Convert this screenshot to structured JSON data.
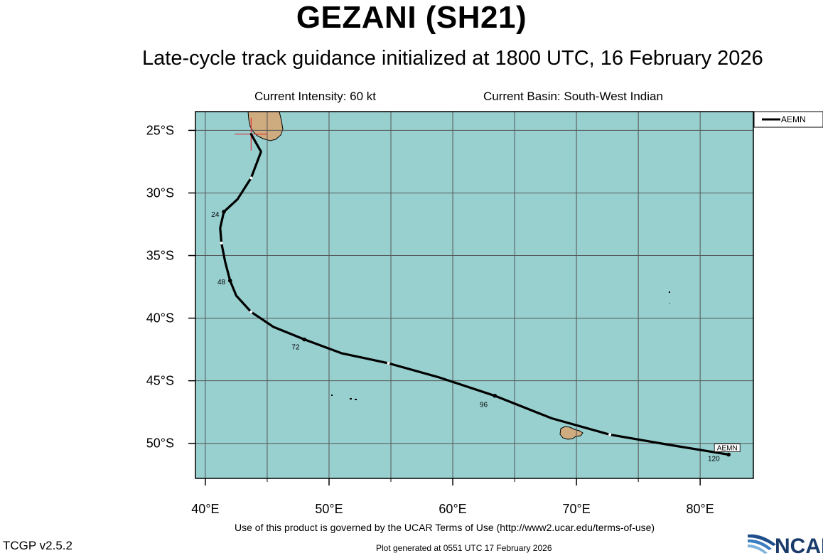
{
  "header": {
    "storm_title": "GEZANI (SH21)",
    "subtitle": "Late-cycle track guidance initialized at 1800 UTC, 16 February 2026",
    "current_intensity": "Current Intensity: 60 kt",
    "current_basin": "Current Basin: South-West Indian"
  },
  "map": {
    "lon_range": [
      39.2,
      84.3
    ],
    "lat_range": [
      -23.5,
      -52.8
    ],
    "ocean_color": "#98cfcf",
    "land_color": "#cfac7f",
    "grid_color": "#555555",
    "x_ticks": [
      {
        "value": 40,
        "label": "40°E"
      },
      {
        "value": 50,
        "label": "50°E"
      },
      {
        "value": 60,
        "label": "60°E"
      },
      {
        "value": 70,
        "label": "70°E"
      },
      {
        "value": 80,
        "label": "80°E"
      }
    ],
    "y_ticks": [
      {
        "value": -25,
        "label": "25°S"
      },
      {
        "value": -30,
        "label": "30°S"
      },
      {
        "value": -35,
        "label": "35°S"
      },
      {
        "value": -40,
        "label": "40°S"
      },
      {
        "value": -45,
        "label": "45°S"
      },
      {
        "value": -50,
        "label": "50°S"
      }
    ],
    "current_position": {
      "lon": 43.7,
      "lat": -25.3,
      "marker_color": "#e0303a"
    },
    "legend": {
      "entries": [
        "AEMN"
      ]
    },
    "track": {
      "model": "AEMN",
      "end_label": "AEMN",
      "points": [
        [
          43.7,
          -25.3
        ],
        [
          44.5,
          -26.7
        ],
        [
          43.7,
          -28.8
        ],
        [
          42.6,
          -30.5
        ],
        [
          41.5,
          -31.5
        ],
        [
          41.2,
          -32.8
        ],
        [
          41.3,
          -34.0
        ],
        [
          41.6,
          -35.5
        ],
        [
          42.0,
          -37.0
        ],
        [
          42.5,
          -38.2
        ],
        [
          43.7,
          -39.5
        ],
        [
          45.5,
          -40.7
        ],
        [
          48.0,
          -41.7
        ],
        [
          51.0,
          -42.8
        ],
        [
          54.8,
          -43.6
        ],
        [
          58.8,
          -44.7
        ],
        [
          63.4,
          -46.2
        ],
        [
          68.0,
          -48.0
        ],
        [
          72.7,
          -49.3
        ],
        [
          77.4,
          -50.1
        ],
        [
          82.3,
          -50.9
        ]
      ],
      "white_dots": [
        [
          43.7,
          -28.8
        ],
        [
          41.3,
          -34.0
        ],
        [
          43.7,
          -39.5
        ],
        [
          54.8,
          -43.6
        ],
        [
          72.7,
          -49.3
        ]
      ],
      "black_dots": [
        [
          41.5,
          -31.5
        ],
        [
          42.0,
          -37.0
        ],
        [
          48.0,
          -41.7
        ],
        [
          63.4,
          -46.2
        ],
        [
          82.3,
          -50.9
        ]
      ],
      "hour_labels": [
        {
          "text": "24",
          "lon": 40.8,
          "lat": -31.9
        },
        {
          "text": "48",
          "lon": 41.3,
          "lat": -37.3
        },
        {
          "text": "72",
          "lon": 47.3,
          "lat": -42.5
        },
        {
          "text": "96",
          "lon": 62.5,
          "lat": -47.1
        },
        {
          "text": "120",
          "lon": 81.1,
          "lat": -51.4
        }
      ]
    }
  },
  "footer": {
    "terms": "Use of this product is governed by the UCAR Terms of Use (http://www2.ucar.edu/terms-of-use)",
    "version": "TCGP v2.5.2",
    "generated": "Plot generated at 0551 UTC   17 February 2026",
    "logo_text": "NCAR"
  }
}
